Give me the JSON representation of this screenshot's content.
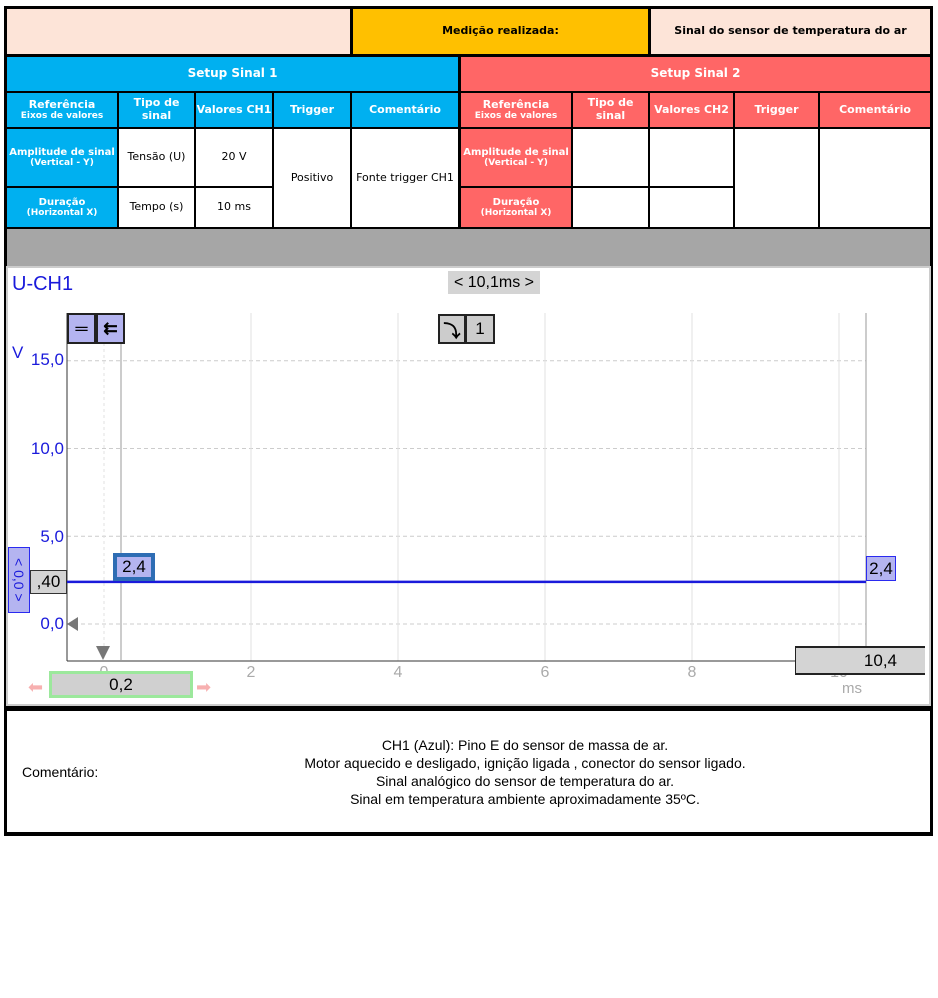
{
  "header": {
    "measurement_label": "Medição realizada:",
    "measurement_value": "Sinal do sensor de temperatura do ar"
  },
  "setup1": {
    "title": "Setup Sinal 1",
    "col_ref": "Referência",
    "col_ref_sub": "Eixos de valores",
    "col_type": "Tipo de sinal",
    "col_values": "Valores CH1",
    "col_trigger": "Trigger",
    "col_comment": "Comentário",
    "row1_label": "Amplitude de sinal",
    "row1_sub": "(Vertical - Y)",
    "row1_type": "Tensão (U)",
    "row1_value": "20 V",
    "row2_label": "Duração",
    "row2_sub": "(Horizontal X)",
    "row2_type": "Tempo (s)",
    "row2_value": "10 ms",
    "trigger": "Positivo",
    "comment": "Fonte trigger CH1"
  },
  "setup2": {
    "title": "Setup Sinal 2",
    "col_ref": "Referência",
    "col_ref_sub": "Eixos de valores",
    "col_type": "Tipo de sinal",
    "col_values": "Valores CH2",
    "col_trigger": "Trigger",
    "col_comment": "Comentário",
    "row1_label": "Amplitude de sinal",
    "row1_sub": "(Vertical - Y)",
    "row2_label": "Duração",
    "row2_sub": "(Horizontal X)"
  },
  "scope": {
    "channel": "U-CH1",
    "time_span": "< 10,1ms >",
    "trigger_channel": "1",
    "y_unit": "V",
    "x_unit": "ms",
    "y_ticks": [
      "15,0",
      "10,0",
      "5,0",
      "0,0"
    ],
    "x_ticks": [
      "0",
      "2",
      "4",
      "6",
      "8",
      "10"
    ],
    "cursor1_value": "2,4",
    "cursor2_value": "2,4",
    "offset_label": "< 0,0 >",
    "level_value": ",40",
    "cursor1_time": "0,2",
    "cursor2_time": "10,4",
    "signal_level_v": 2.4,
    "signal_color": "#1a1adb"
  },
  "comment": {
    "label": "Comentário:",
    "lines": [
      "CH1 (Azul): Pino E do sensor de massa de ar.",
      "Motor aquecido e desligado, ignição ligada , conector do sensor ligado.",
      "Sinal analógico do sensor de temperatura do ar.",
      "Sinal em temperatura ambiente aproximadamente 35ºC."
    ]
  }
}
